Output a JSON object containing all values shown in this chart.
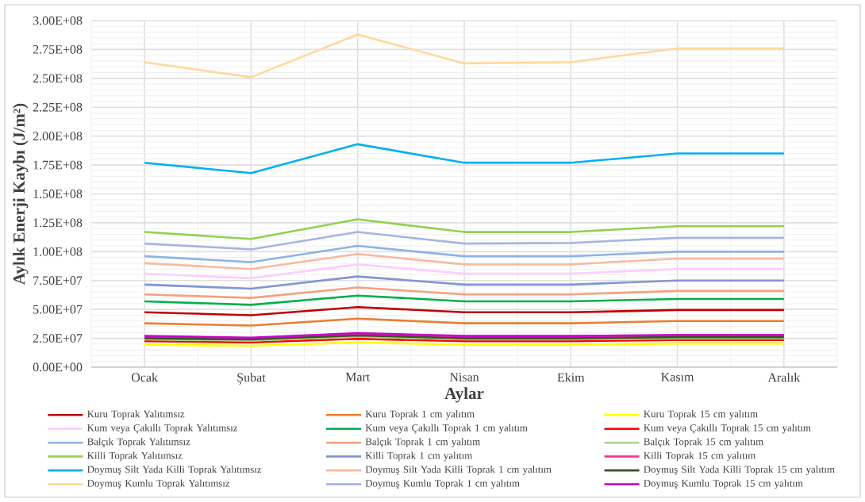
{
  "chart_data": {
    "type": "line",
    "xlabel": "Aylar",
    "ylabel": "Aylık Enerji Kaybı (J/m²)",
    "categories": [
      "Ocak",
      "Şubat",
      "Mart",
      "Nisan",
      "Ekim",
      "Kasım",
      "Aralık"
    ],
    "ylim": [
      0,
      300000000
    ],
    "yticks": [
      {
        "value": 0,
        "label": "0.00E+00"
      },
      {
        "value": 25000000,
        "label": "2.50E+07"
      },
      {
        "value": 50000000,
        "label": "5.00E+07"
      },
      {
        "value": 75000000,
        "label": "7.50E+07"
      },
      {
        "value": 100000000,
        "label": "1.00E+08"
      },
      {
        "value": 125000000,
        "label": "1.25E+08"
      },
      {
        "value": 150000000,
        "label": "1.50E+08"
      },
      {
        "value": 175000000,
        "label": "1.75E+08"
      },
      {
        "value": 200000000,
        "label": "2.00E+08"
      },
      {
        "value": 225000000,
        "label": "2.25E+08"
      },
      {
        "value": 250000000,
        "label": "2.50E+08"
      },
      {
        "value": 275000000,
        "label": "2.75E+08"
      },
      {
        "value": 300000000,
        "label": "3.00E+08"
      }
    ],
    "grid": true,
    "legend": "bottom",
    "marker": "none",
    "line_style": "solid",
    "series": [
      {
        "name": "Kuru Toprak Yalıtımsız",
        "color": "#c00000",
        "values": [
          47500000,
          45000000,
          52000000,
          47500000,
          47500000,
          49500000,
          49500000
        ]
      },
      {
        "name": "Kuru Toprak 1 cm yalıtım",
        "color": "#ed7d31",
        "values": [
          38000000,
          36000000,
          42000000,
          38000000,
          38000000,
          40000000,
          40000000
        ]
      },
      {
        "name": "Kuru Toprak 15 cm yalıtım",
        "color": "#ffff00",
        "values": [
          19500000,
          18500000,
          21500000,
          19500000,
          19500000,
          20500000,
          20500000
        ]
      },
      {
        "name": "Kum veya Çakıllı Toprak Yalıtımsız",
        "color": "#ffccff",
        "values": [
          81000000,
          77000000,
          89000000,
          81000000,
          81000000,
          85000000,
          85000000
        ]
      },
      {
        "name": "Kum veya Çakıllı Toprak 1 cm yalıtım",
        "color": "#00b050",
        "values": [
          57000000,
          54000000,
          62000000,
          57000000,
          57000000,
          59000000,
          59000000
        ]
      },
      {
        "name": "Kum veya Çakıllı Toprak 15 cm yalıtım",
        "color": "#ff0000",
        "values": [
          22500000,
          21500000,
          24500000,
          22500000,
          22500000,
          23500000,
          23500000
        ]
      },
      {
        "name": "Balçık Toprak Yalıtımsız",
        "color": "#8db4e2",
        "values": [
          96000000,
          91000000,
          105000000,
          96000000,
          96000000,
          100000000,
          100000000
        ]
      },
      {
        "name": "Balçık Toprak 1 cm yalıtım",
        "color": "#f4a081",
        "values": [
          63000000,
          60000000,
          69000000,
          63000000,
          63000000,
          66000000,
          66000000
        ]
      },
      {
        "name": "Balçık Toprak 15 cm yalıtım",
        "color": "#a9d18e",
        "values": [
          24000000,
          23000000,
          26500000,
          24000000,
          24000000,
          25000000,
          25000000
        ]
      },
      {
        "name": "Killi Toprak Yalıtımsız",
        "color": "#92d050",
        "values": [
          117000000,
          111000000,
          128000000,
          117000000,
          117000000,
          122000000,
          122000000
        ]
      },
      {
        "name": "Killi Toprak 1 cm yalıtım",
        "color": "#7f96d4",
        "values": [
          71500000,
          68000000,
          78500000,
          71500000,
          71500000,
          75000000,
          75000000
        ]
      },
      {
        "name": "Killi Toprak 15 cm yalıtım",
        "color": "#ff3399",
        "values": [
          26000000,
          25000000,
          28500000,
          26000000,
          26000000,
          27000000,
          27000000
        ]
      },
      {
        "name": "Doymuş Silt Yada Killi Toprak Yalıtımsız",
        "color": "#00b0f0",
        "values": [
          177000000,
          168000000,
          193000000,
          177000000,
          177000000,
          185000000,
          185000000
        ]
      },
      {
        "name": "Doymuş Silt Yada Killi Toprak 1 cm yalıtım",
        "color": "#f8b9a0",
        "values": [
          90000000,
          85000000,
          98000000,
          89000000,
          89000000,
          94000000,
          94000000
        ]
      },
      {
        "name": "Doymuş Silt Yada Killi Toprak 15 cm yalıtım",
        "color": "#375623",
        "values": [
          25000000,
          24000000,
          27500000,
          25000000,
          25000000,
          26000000,
          26000000
        ]
      },
      {
        "name": "Doymuş Kumlu Toprak Yalıtımsız",
        "color": "#ffd89b",
        "values": [
          264000000,
          251000000,
          288000000,
          263000000,
          264000000,
          276000000,
          276000000
        ]
      },
      {
        "name": "Doymuş Kumlu Toprak 1 cm yalıtım",
        "color": "#a6b4e0",
        "values": [
          107000000,
          102000000,
          117000000,
          107000000,
          107500000,
          112000000,
          112000000
        ]
      },
      {
        "name": "Doymuş Kumlu Toprak 15 cm yalıtım",
        "color": "#cc00cc",
        "values": [
          27000000,
          25500000,
          29500000,
          27000000,
          27000000,
          28000000,
          28000000
        ]
      }
    ]
  }
}
